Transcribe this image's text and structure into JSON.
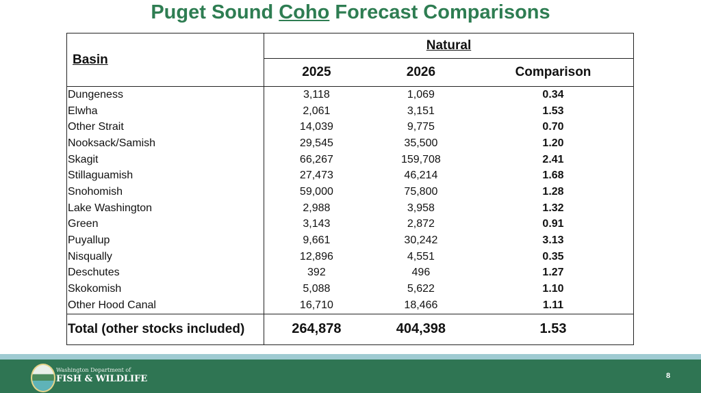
{
  "title": {
    "before": "Puget Sound ",
    "underlined": "Coho",
    "after": " Forecast Comparisons"
  },
  "table": {
    "basin_header": "Basin",
    "group_header": "Natural",
    "columns": [
      "2025",
      "2026",
      "Comparison"
    ],
    "rows": [
      {
        "basin": "Dungeness",
        "y2025": "3,118",
        "y2026": "1,069",
        "comparison": "0.34"
      },
      {
        "basin": "Elwha",
        "y2025": "2,061",
        "y2026": "3,151",
        "comparison": "1.53"
      },
      {
        "basin": "Other Strait",
        "y2025": "14,039",
        "y2026": "9,775",
        "comparison": "0.70"
      },
      {
        "basin": "Nooksack/Samish",
        "y2025": "29,545",
        "y2026": "35,500",
        "comparison": "1.20"
      },
      {
        "basin": "Skagit",
        "y2025": "66,267",
        "y2026": "159,708",
        "comparison": "2.41"
      },
      {
        "basin": "Stillaguamish",
        "y2025": "27,473",
        "y2026": "46,214",
        "comparison": "1.68"
      },
      {
        "basin": "Snohomish",
        "y2025": "59,000",
        "y2026": "75,800",
        "comparison": "1.28"
      },
      {
        "basin": "Lake Washington",
        "y2025": "2,988",
        "y2026": "3,958",
        "comparison": "1.32"
      },
      {
        "basin": "Green",
        "y2025": "3,143",
        "y2026": "2,872",
        "comparison": "0.91"
      },
      {
        "basin": "Puyallup",
        "y2025": "9,661",
        "y2026": "30,242",
        "comparison": "3.13"
      },
      {
        "basin": "Nisqually",
        "y2025": "12,896",
        "y2026": "4,551",
        "comparison": "0.35"
      },
      {
        "basin": "Deschutes",
        "y2025": "392",
        "y2026": "496",
        "comparison": "1.27"
      },
      {
        "basin": "Skokomish",
        "y2025": "5,088",
        "y2026": "5,622",
        "comparison": "1.10"
      },
      {
        "basin": "Other Hood Canal",
        "y2025": "16,710",
        "y2026": "18,466",
        "comparison": "1.11"
      }
    ],
    "total": {
      "basin": "Total (other stocks included)",
      "y2025": "264,878",
      "y2026": "404,398",
      "comparison": "1.53"
    }
  },
  "footer": {
    "org_line1": "Washington Department of",
    "org_line2": "FISH & WILDLIFE",
    "page_number": "8",
    "colors": {
      "green": "#2f7553",
      "stripe": "#9fcbd2",
      "title": "#2e7d52"
    }
  }
}
